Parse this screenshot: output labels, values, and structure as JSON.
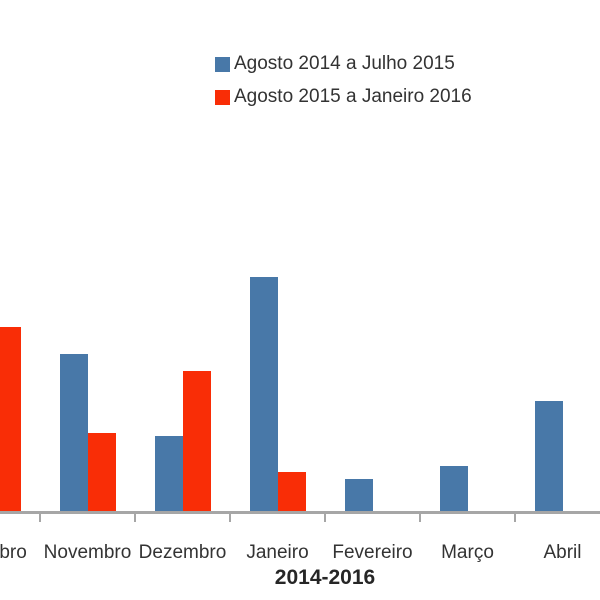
{
  "legend": {
    "items": [
      {
        "label": "Agosto 2014 a Julho 2015",
        "color": "#4878A8"
      },
      {
        "label": "Agosto 2015 a Janeiro 2016",
        "color": "#F92D06"
      }
    ]
  },
  "x_axis": {
    "title": "2014-2016",
    "line_color": "#A6A6A6"
  },
  "chart_data": {
    "type": "bar",
    "categories": [
      "Outubro",
      "Novembro",
      "Dezembro",
      "Janeiro",
      "Fevereiro",
      "Março",
      "Abril"
    ],
    "series": [
      {
        "name": "Agosto 2014 a Julho 2015",
        "color": "#4878A8",
        "values": [
          null,
          157,
          75,
          234,
          32,
          45,
          110
        ]
      },
      {
        "name": "Agosto 2015 a Janeiro 2016",
        "color": "#F92D06",
        "values": [
          184,
          78,
          140,
          39,
          null,
          null,
          null
        ]
      }
    ],
    "title": "",
    "xlabel": "2014-2016",
    "ylabel": "",
    "ylim": [
      0,
      250
    ],
    "values_unit": "relative (no y-axis scale shown); numbers are bar heights in px",
    "grid": false,
    "y_axis_visible": false,
    "legend_position": "top-center",
    "layout_note": "chart is clipped at the left edge; first category (Outubro) only partially visible"
  }
}
